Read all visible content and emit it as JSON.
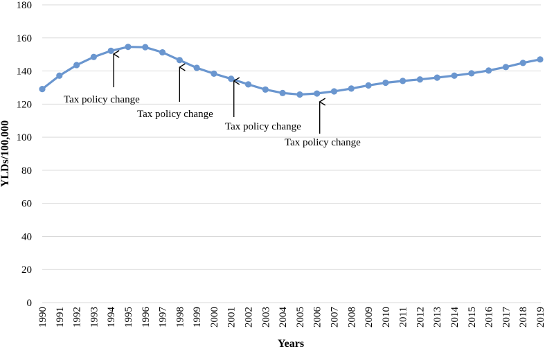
{
  "chart_data": {
    "type": "line",
    "title": "",
    "xlabel": "Years",
    "ylabel": "YLDs/100,000",
    "ylim": [
      0,
      180
    ],
    "yticks": [
      0,
      20,
      40,
      60,
      80,
      100,
      120,
      140,
      160,
      180
    ],
    "categories": [
      "1990",
      "1991",
      "1992",
      "1993",
      "1994",
      "1995",
      "1996",
      "1997",
      "1998",
      "1999",
      "2000",
      "2001",
      "2002",
      "2003",
      "2004",
      "2005",
      "2006",
      "2007",
      "2008",
      "2009",
      "2010",
      "2011",
      "2012",
      "2013",
      "2014",
      "2015",
      "2016",
      "2017",
      "2018",
      "2019"
    ],
    "series": [
      {
        "name": "YLDs/100,000",
        "color": "#6a96cf",
        "values": [
          129.1,
          137.2,
          143.6,
          148.5,
          152.2,
          154.6,
          154.4,
          151.3,
          146.6,
          141.9,
          138.4,
          135.3,
          131.9,
          128.8,
          126.7,
          125.8,
          126.4,
          127.7,
          129.4,
          131.3,
          132.9,
          134.0,
          134.9,
          136.0,
          137.2,
          138.6,
          140.3,
          142.4,
          144.9,
          147.0
        ]
      }
    ],
    "annotations": [
      {
        "text": "Tax policy change",
        "year": "1994",
        "value": 152.2,
        "direction": "up",
        "text_anchor": "below-left"
      },
      {
        "text": "Tax policy change",
        "year": "1998",
        "value": 146.6,
        "direction": "up",
        "text_anchor": "below-left"
      },
      {
        "text": "Tax policy change",
        "year": "2001",
        "value": 135.3,
        "direction": "up",
        "text_anchor": "below-left"
      },
      {
        "text": "Tax policy change",
        "year": "2006",
        "value": 126.4,
        "direction": "up",
        "text_anchor": "below-left"
      }
    ]
  }
}
